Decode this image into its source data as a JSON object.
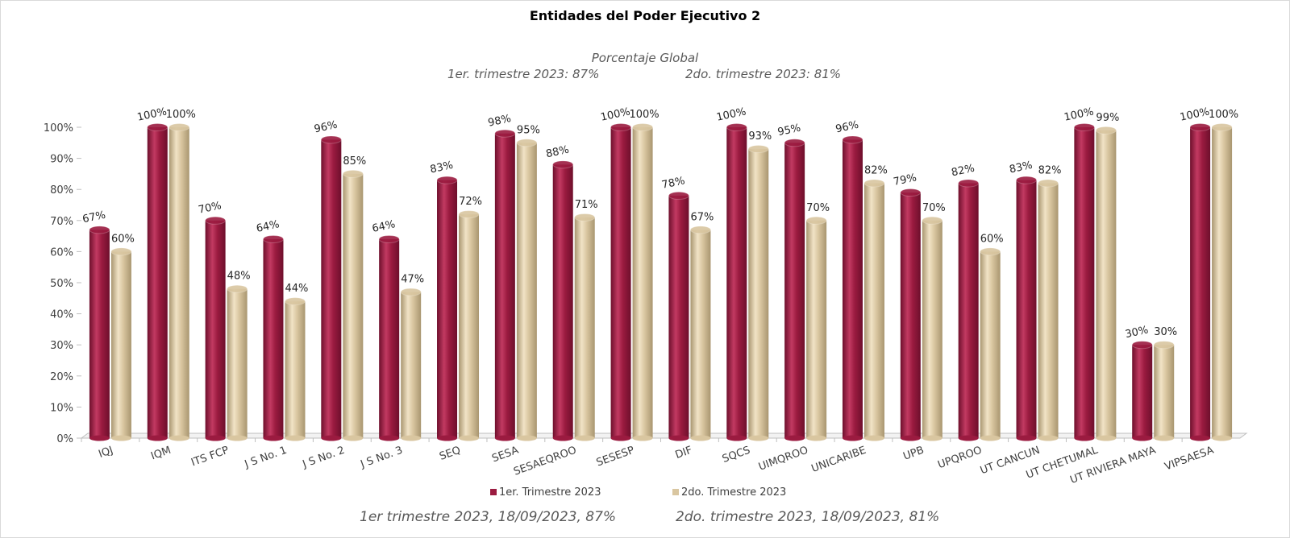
{
  "header": {
    "title": "Entidades del Poder Ejecutivo 2",
    "subtitle": "Porcentaje Global",
    "q1_text": "1er. trimestre 2023: 87%",
    "q2_text": "2do. trimestre 2023: 81%"
  },
  "footer": {
    "q1_text": "1er trimestre  2023,  18/09/2023, 87%",
    "q2_text": "2do. trimestre 2023, 18/09/2023, 81%"
  },
  "colors": {
    "series1": "#9b1b40",
    "series2": "#d9c6a0",
    "axis": "#bfbfbf",
    "text": "#404040"
  },
  "chart_data": {
    "type": "bar",
    "title": "Entidades del Poder Ejecutivo 2",
    "categories": [
      "IQJ",
      "IQM",
      "ITS FCP",
      "J S No. 1",
      "J S No. 2",
      "J S No. 3",
      "SEQ",
      "SESA",
      "SESAEQROO",
      "SESESP",
      "DIF",
      "SQCS",
      "UIMQROO",
      "UNICARIBE",
      "UPB",
      "UPQROO",
      "UT CANCUN",
      "UT CHETUMAL",
      "UT RIVIERA MAYA",
      "VIPSAESA"
    ],
    "series": [
      {
        "name": "1er. Trimestre 2023",
        "values": [
          67,
          100,
          70,
          64,
          96,
          64,
          83,
          98,
          88,
          100,
          78,
          100,
          95,
          96,
          79,
          82,
          83,
          100,
          30,
          100
        ],
        "labels": [
          "67%",
          "100%",
          "70%",
          "64%",
          "96%",
          "64%",
          "83%",
          "98%",
          "88%",
          "100%",
          "78%",
          "100%",
          "95%",
          "96%",
          "79%",
          "82%",
          "83%",
          "100%",
          "30%",
          "100%"
        ]
      },
      {
        "name": "2do. Trimestre 2023",
        "values": [
          60,
          100,
          48,
          44,
          85,
          47,
          72,
          95,
          71,
          100,
          67,
          93,
          70,
          82,
          70,
          60,
          82,
          99,
          30,
          100
        ],
        "labels": [
          "60%",
          "100%",
          "48%",
          "44%",
          "85%",
          "47%",
          "72%",
          "95%",
          "71%",
          "100%",
          "67%",
          "93%",
          "70%",
          "82%",
          "70%",
          "60%",
          "82%",
          "99%",
          "30%",
          "100%"
        ]
      }
    ],
    "ylim": [
      0,
      100
    ],
    "yticks": [
      "0%",
      "10%",
      "20%",
      "30%",
      "40%",
      "50%",
      "60%",
      "70%",
      "80%",
      "90%",
      "100%"
    ],
    "grid": false,
    "legend_position": "bottom"
  }
}
